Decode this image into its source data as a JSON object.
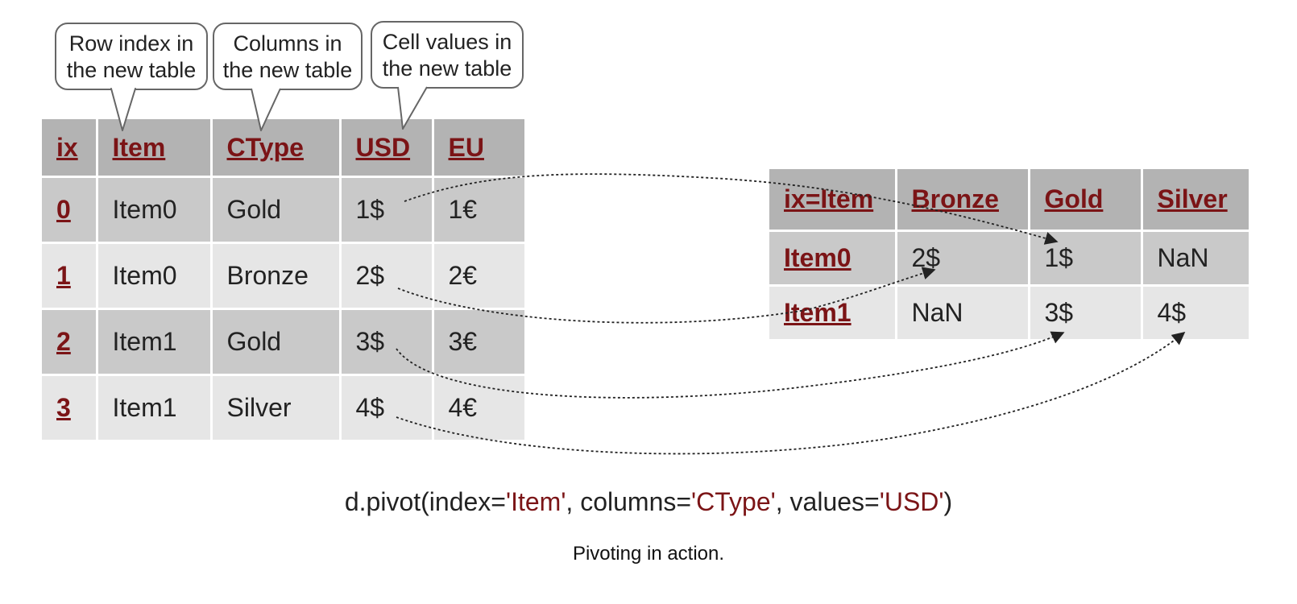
{
  "callouts": [
    {
      "line1": "Row index in",
      "line2": "the new table"
    },
    {
      "line1": "Columns in",
      "line2": "the new table"
    },
    {
      "line1": "Cell values in",
      "line2": "the new table"
    }
  ],
  "source_table": {
    "headers": [
      "ix",
      "Item",
      "CType",
      "USD",
      "EU"
    ],
    "rows": [
      [
        "0",
        "Item0",
        "Gold",
        "1$",
        "1€"
      ],
      [
        "1",
        "Item0",
        "Bronze",
        "2$",
        "2€"
      ],
      [
        "2",
        "Item1",
        "Gold",
        "3$",
        "3€"
      ],
      [
        "3",
        "Item1",
        "Silver",
        "4$",
        "4€"
      ]
    ]
  },
  "result_table": {
    "headers": [
      "ix=Item",
      "Bronze",
      "Gold",
      "Silver"
    ],
    "rows": [
      [
        "Item0",
        "2$",
        "1$",
        "NaN"
      ],
      [
        "Item1",
        "NaN",
        "3$",
        "4$"
      ]
    ]
  },
  "code": {
    "prefix": "d.pivot(index=",
    "index_value": "'Item'",
    "mid1": ", columns=",
    "columns_value": "'CType'",
    "mid2": ", values=",
    "values_value": "'USD'",
    "suffix": ")"
  },
  "caption": "Pivoting in action.",
  "colors": {
    "header_text": "#7b1416",
    "header_bg": "#b3b3b3",
    "row_dark": "#c9c9c9",
    "row_light": "#e6e6e6",
    "arrow": "#222222"
  }
}
